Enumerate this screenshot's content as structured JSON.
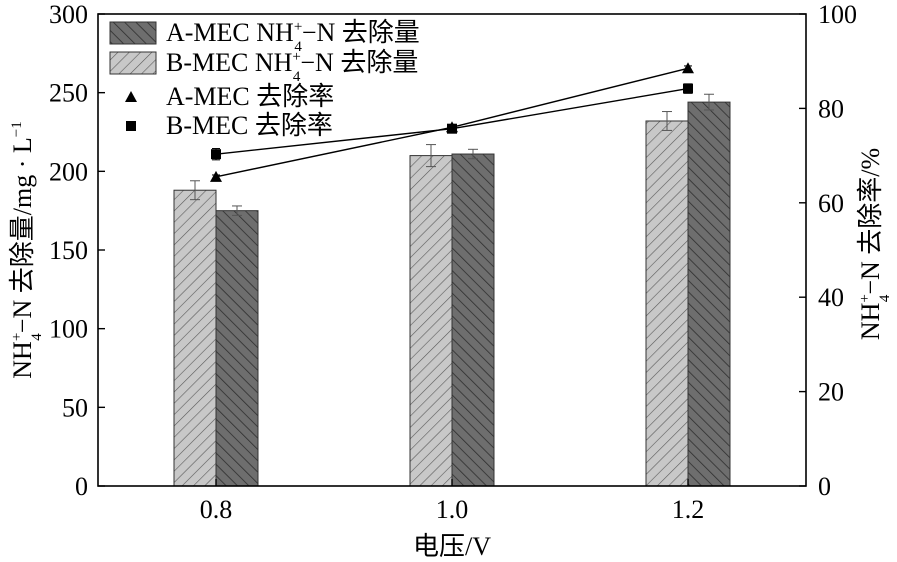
{
  "chart_data": {
    "type": "bar",
    "categories": [
      "0.8",
      "1.0",
      "1.2"
    ],
    "xlabel": "电压/V",
    "ylabel_left": {
      "main": "NH",
      "sup": "+",
      "sub": "4",
      "rest": "−N 去除量/mg · L",
      "rest_sup": "−1"
    },
    "ylabel_right": {
      "main": "NH",
      "sup": "+",
      "sub": "4",
      "rest": "−N 去除率/%"
    },
    "ylim_left": [
      0,
      300
    ],
    "yticks_left": [
      "0",
      "50",
      "100",
      "150",
      "200",
      "250",
      "300"
    ],
    "ylim_right": [
      0,
      100
    ],
    "yticks_right": [
      "0",
      "20",
      "40",
      "60",
      "80",
      "100"
    ],
    "bar_series": [
      {
        "key": "B",
        "values": [
          188,
          210,
          232
        ],
        "errors": [
          6,
          7,
          6
        ],
        "fill": "#c8c8c8",
        "hatch": "#5a5a5a"
      },
      {
        "key": "A",
        "values": [
          175,
          211,
          244
        ],
        "errors": [
          3,
          3,
          5
        ],
        "fill": "#6e6e6e",
        "hatch": "#2e2e2e"
      }
    ],
    "line_series": [
      {
        "key": "A",
        "values": [
          65.5,
          76.0,
          88.5
        ],
        "errors": [
          0.4,
          0.4,
          0.5
        ],
        "marker": "triangle"
      },
      {
        "key": "B",
        "values": [
          70.3,
          75.7,
          84.2
        ],
        "errors": [
          1.2,
          0.8,
          1.0
        ],
        "marker": "square"
      }
    ],
    "legend": {
      "position": "top-left",
      "entries": [
        {
          "kind": "bar",
          "series": "A",
          "text_before": "A-MEC NH",
          "sup": "+",
          "sub": "4",
          "text_after": "−N 去除量"
        },
        {
          "kind": "bar",
          "series": "B",
          "text_before": "B-MEC NH",
          "sup": "+",
          "sub": "4",
          "text_after": "−N 去除量"
        },
        {
          "kind": "line",
          "series": "A",
          "text": "A-MEC 去除率"
        },
        {
          "kind": "line",
          "series": "B",
          "text": "B-MEC 去除率"
        }
      ]
    },
    "grid": false
  }
}
